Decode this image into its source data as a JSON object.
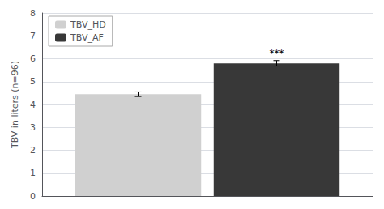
{
  "chart_data": {
    "type": "bar",
    "ylabel": "TBV in liters (n=96)",
    "series": [
      {
        "name": "TBV_HD",
        "color": "#d0d0d0",
        "values": [
          4.45
        ],
        "errors": [
          0.1
        ]
      },
      {
        "name": "TBV_AF",
        "color": "#383838",
        "values": [
          5.8
        ],
        "errors": [
          0.12
        ],
        "annotation": "***"
      }
    ],
    "ylim": [
      0,
      8
    ],
    "yticks": [
      0,
      1,
      2,
      3,
      4,
      5,
      6,
      7,
      8
    ],
    "grid": true,
    "legend": "upper left",
    "tick_labels": "y"
  }
}
